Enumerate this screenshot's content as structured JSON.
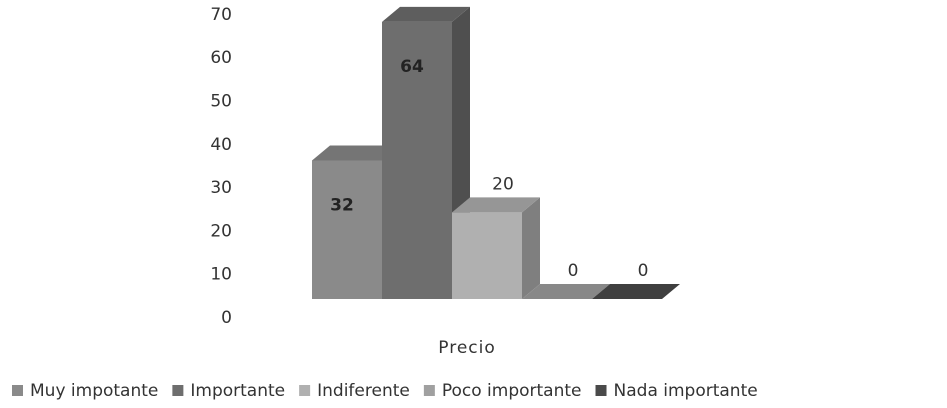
{
  "chart_data": {
    "type": "bar",
    "categories": [
      "Precio"
    ],
    "series": [
      {
        "name": "Muy impotante",
        "values": [
          32
        ],
        "color": "#8a8a8a"
      },
      {
        "name": "Importante",
        "values": [
          64
        ],
        "color": "#6e6e6e"
      },
      {
        "name": "Indiferente",
        "values": [
          20
        ],
        "color": "#b0b0b0"
      },
      {
        "name": "Poco importante",
        "values": [
          0
        ],
        "color": "#a0a0a0"
      },
      {
        "name": "Nada importante",
        "values": [
          0
        ],
        "color": "#4a4a4a"
      }
    ],
    "ylim": [
      0,
      70
    ],
    "yticks": [
      "0",
      "10",
      "20",
      "30",
      "40",
      "50",
      "60",
      "70"
    ],
    "xlabel": "",
    "ylabel": "",
    "title": "",
    "legend_position": "bottom",
    "grid": false,
    "three_d": true
  }
}
